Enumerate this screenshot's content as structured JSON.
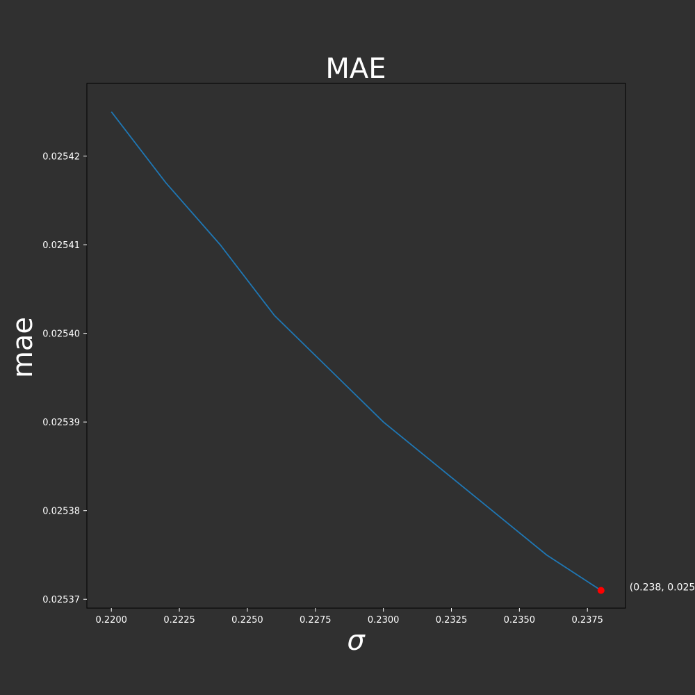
{
  "chart_data": {
    "type": "line",
    "title": "MAE",
    "xlabel": "σ",
    "ylabel": "mae",
    "x": [
      0.22,
      0.222,
      0.224,
      0.226,
      0.228,
      0.23,
      0.232,
      0.234,
      0.236,
      0.238
    ],
    "series": [
      {
        "values": [
          0.025425,
          0.025417,
          0.02541,
          0.025402,
          0.025396,
          0.02539,
          0.025385,
          0.02538,
          0.025375,
          0.025371
        ],
        "color": "#1f77b4"
      }
    ],
    "xticks": [
      "0.2200",
      "0.2225",
      "0.2250",
      "0.2275",
      "0.2300",
      "0.2325",
      "0.2350",
      "0.2375"
    ],
    "yticks": [
      "0.02537",
      "0.02538",
      "0.02539",
      "0.02540",
      "0.02541",
      "0.02542"
    ],
    "xlim": [
      0.2191,
      0.2389
    ],
    "ylim": [
      0.025369,
      0.0254282
    ],
    "highlight_point": {
      "x": 0.238,
      "y": 0.025371,
      "color": "#ff0000",
      "label": "(0.238, 0.025"
    },
    "grid": false,
    "legend": "none",
    "colors": {
      "background": "#303030",
      "axes_face": "#303030",
      "text": "#ffffff",
      "spine": "#000000"
    }
  }
}
